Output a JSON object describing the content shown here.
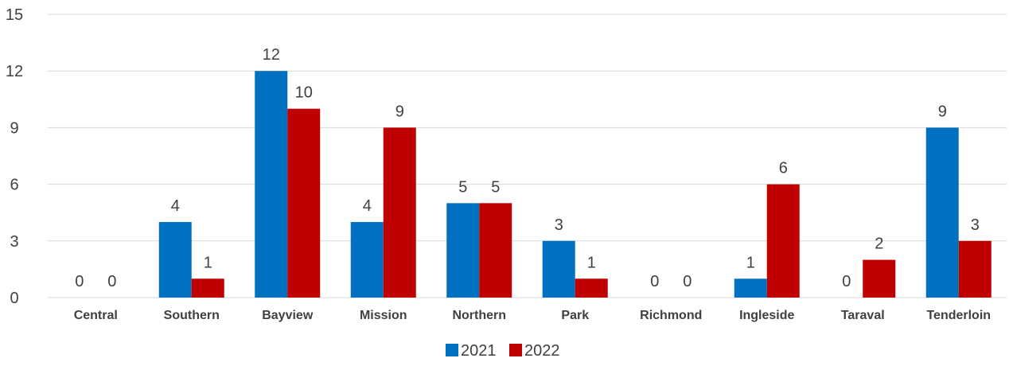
{
  "chart_data": {
    "type": "bar",
    "title": "",
    "xlabel": "",
    "ylabel": "",
    "categories": [
      "Central",
      "Southern",
      "Bayview",
      "Mission",
      "Northern",
      "Park",
      "Richmond",
      "Ingleside",
      "Taraval",
      "Tenderloin"
    ],
    "series": [
      {
        "name": "2021",
        "color": "#0070c0",
        "values": [
          0,
          4,
          12,
          4,
          5,
          3,
          0,
          1,
          0,
          9
        ]
      },
      {
        "name": "2022",
        "color": "#c00000",
        "values": [
          0,
          1,
          10,
          9,
          5,
          1,
          0,
          6,
          2,
          3
        ]
      }
    ],
    "ylim": [
      0,
      15
    ],
    "yticks": [
      0,
      3,
      6,
      9,
      12,
      15
    ],
    "grid": true,
    "data_labels": true,
    "legend_position": "bottom"
  }
}
